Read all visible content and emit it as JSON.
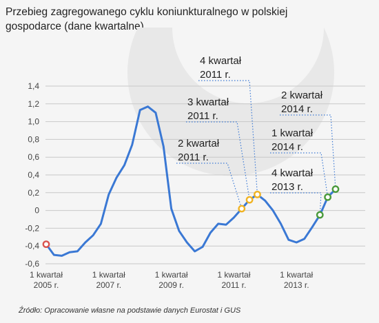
{
  "title_line1": "Przebieg zagregowanego cyklu koniunkturalnego w polskiej",
  "title_line2": "gospodarce (dane kwartalne)",
  "source": "Źródło: Opracowanie własne na podstawie danych Eurostat i GUS",
  "colors": {
    "line": "#3a78d4",
    "marker_red": "#d9534f",
    "marker_yellow": "#f0b323",
    "marker_green": "#4a9a3a",
    "grid": "#c8c8c8",
    "background": "#f5f5f5",
    "watermark": "#e8e8e8"
  },
  "chart_data": {
    "type": "line",
    "title": "Przebieg zagregowanego cyklu koniunkturalnego w polskiej gospodarce (dane kwartalne)",
    "ylim": [
      -0.6,
      1.4
    ],
    "yticks": [
      "1,4",
      "1,2",
      "1,0",
      "0,8",
      "0,6",
      "0,4",
      "0,2",
      "0",
      "-0,2",
      "-0,4",
      "-0,6"
    ],
    "ytick_values": [
      1.4,
      1.2,
      1.0,
      0.8,
      0.6,
      0.4,
      0.2,
      0,
      -0.2,
      -0.4,
      -0.6
    ],
    "grid": "horizontal",
    "x_tick_labels": [
      {
        "index": 0,
        "line1": "1 kwartał",
        "line2": "2005 r."
      },
      {
        "index": 8,
        "line1": "1 kwartał",
        "line2": "2007 r."
      },
      {
        "index": 16,
        "line1": "1 kwartał",
        "line2": "2009 r."
      },
      {
        "index": 24,
        "line1": "1 kwartał",
        "line2": "2011 r."
      },
      {
        "index": 32,
        "line1": "1 kwartał",
        "line2": "2013 r."
      }
    ],
    "series": [
      {
        "values": [
          -0.38,
          -0.5,
          -0.51,
          -0.47,
          -0.46,
          -0.36,
          -0.28,
          -0.15,
          0.18,
          0.37,
          0.51,
          0.74,
          1.13,
          1.17,
          1.1,
          0.72,
          0.02,
          -0.23,
          -0.36,
          -0.46,
          -0.41,
          -0.25,
          -0.15,
          -0.16,
          -0.08,
          0.02,
          0.12,
          0.18,
          0.11,
          0.0,
          -0.15,
          -0.33,
          -0.36,
          -0.32,
          -0.19,
          -0.05,
          0.15,
          0.24
        ]
      }
    ],
    "highlight_points": [
      {
        "index": 0,
        "color": "red"
      },
      {
        "index": 25,
        "color": "yellow"
      },
      {
        "index": 26,
        "color": "yellow"
      },
      {
        "index": 27,
        "color": "yellow"
      },
      {
        "index": 35,
        "color": "green"
      },
      {
        "index": 36,
        "color": "green"
      },
      {
        "index": 37,
        "color": "green"
      }
    ],
    "annotations": [
      {
        "line1": "4 kwartał",
        "line2": "2011 r.",
        "point_index": 27
      },
      {
        "line1": "3 kwartał",
        "line2": "2011 r.",
        "point_index": 26
      },
      {
        "line1": "2 kwartał",
        "line2": "2011 r.",
        "point_index": 25
      },
      {
        "line1": "2 kwartał",
        "line2": "2014 r.",
        "point_index": 37
      },
      {
        "line1": "1 kwartał",
        "line2": "2014 r.",
        "point_index": 36
      },
      {
        "line1": "4 kwartał",
        "line2": "2013 r.",
        "point_index": 35
      }
    ]
  }
}
